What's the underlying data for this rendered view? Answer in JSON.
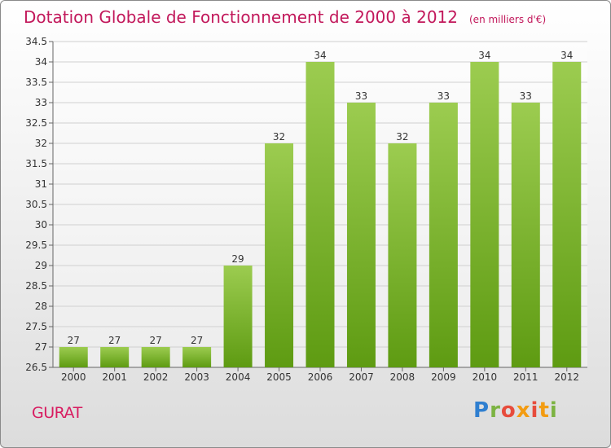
{
  "title": "Dotation Globale de Fonctionnement de 2000 à 2012",
  "subtitle": "(en milliers d'€)",
  "commune": "GURAT",
  "logo": {
    "text": "Proxiti",
    "colors": [
      "#2f7fd0",
      "#f39c12",
      "#e74c3c",
      "#7cb342"
    ]
  },
  "colors": {
    "title": "#c2185b",
    "bar_top": "#9ccc50",
    "bar_bottom": "#5e9b12",
    "grid": "#d0d0d0"
  },
  "chart_data": {
    "type": "bar",
    "categories": [
      "2000",
      "2001",
      "2002",
      "2003",
      "2004",
      "2005",
      "2006",
      "2007",
      "2008",
      "2009",
      "2010",
      "2011",
      "2012"
    ],
    "values": [
      27,
      27,
      27,
      27,
      29,
      32,
      34,
      33,
      32,
      33,
      34,
      33,
      34
    ],
    "data_labels": [
      "27",
      "27",
      "27",
      "27",
      "29",
      "32",
      "34",
      "33",
      "32",
      "33",
      "34",
      "33",
      "34"
    ],
    "ylim": [
      26.5,
      34.5
    ],
    "yticks": [
      "26.5",
      "27",
      "27.5",
      "28",
      "28.5",
      "29",
      "29.5",
      "30",
      "30.5",
      "31",
      "31.5",
      "32",
      "32.5",
      "33",
      "33.5",
      "34",
      "34.5"
    ],
    "grid": true,
    "legend": "none"
  }
}
